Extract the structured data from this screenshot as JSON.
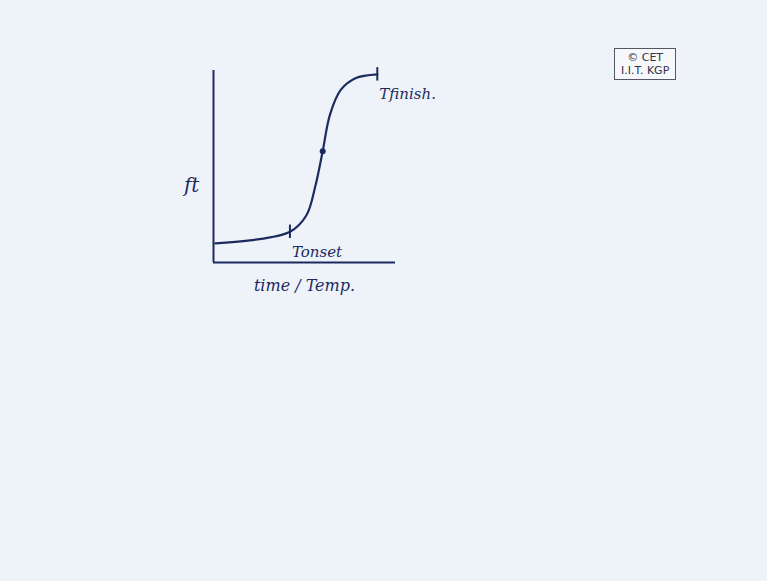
{
  "chart_data": {
    "type": "line",
    "x": [
      0.1,
      2.0,
      4.2,
      5.1,
      5.6,
      6.0,
      6.4,
      7.0,
      7.8,
      9.0
    ],
    "values": [
      0.1,
      0.115,
      0.16,
      0.245,
      0.4,
      0.58,
      0.77,
      0.9,
      0.96,
      0.98
    ],
    "xlim": [
      0,
      10
    ],
    "ylim": [
      0,
      1
    ],
    "xticks": [],
    "yticks": [],
    "tick_labels": false,
    "grid": false,
    "color": "#1c2b5e",
    "xlabel": "time / Temp.",
    "ylabel": "ft",
    "annotations": [
      {
        "text": "Tonset",
        "x": 4.2,
        "y": 0.16
      },
      {
        "text": "Tfinish.",
        "x": 9.0,
        "y": 0.98
      }
    ],
    "marked_points": [
      {
        "x": 6.0,
        "y": 0.58
      }
    ],
    "watermark": [
      "© CET",
      "I.I.T. KGP"
    ]
  }
}
